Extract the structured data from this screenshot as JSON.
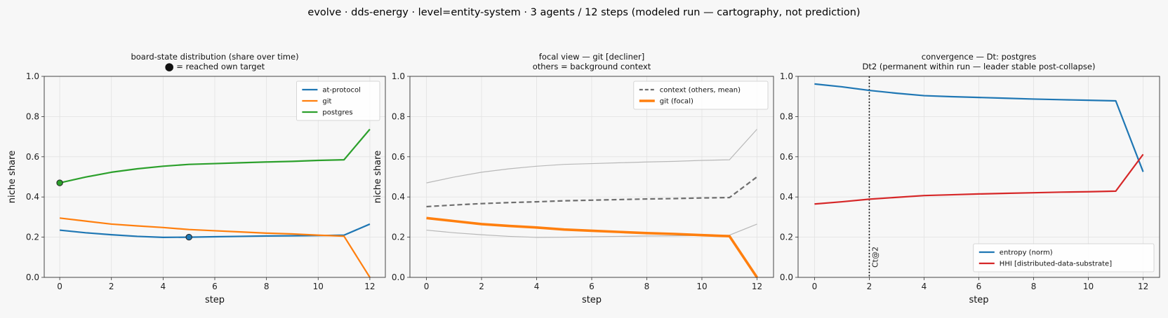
{
  "suptitle": "evolve · dds-energy · level=entity-system · 3 agents / 12 steps   (modeled run — cartography, not prediction)",
  "colors": {
    "blue": "#1f77b4",
    "orange": "#ff7f0e",
    "green": "#2ca02c",
    "red": "#d62728",
    "gray": "#6e6e6e",
    "lightgray": "#b8b8b8"
  },
  "chart_data": [
    {
      "type": "line",
      "title": "board-state distribution (share over time)",
      "subtitle": "⬤ = reached own target",
      "xlabel": "step",
      "ylabel": "niche share",
      "xlim": [
        -0.6,
        12.6
      ],
      "ylim": [
        0,
        1
      ],
      "xticks": [
        0,
        2,
        4,
        6,
        8,
        10,
        12
      ],
      "yticks": [
        0.0,
        0.2,
        0.4,
        0.6,
        0.8,
        1.0
      ],
      "grid": true,
      "legend_position": "top-right",
      "x": [
        0,
        1,
        2,
        3,
        4,
        5,
        6,
        7,
        8,
        9,
        10,
        11,
        12
      ],
      "series": [
        {
          "name": "at-protocol",
          "color": "#1f77b4",
          "values": [
            0.235,
            0.222,
            0.212,
            0.204,
            0.199,
            0.2,
            0.202,
            0.204,
            0.206,
            0.207,
            0.208,
            0.21,
            0.265
          ],
          "target_step": 5
        },
        {
          "name": "git",
          "color": "#ff7f0e",
          "values": [
            0.295,
            0.28,
            0.265,
            0.256,
            0.248,
            0.238,
            0.232,
            0.226,
            0.22,
            0.216,
            0.21,
            0.205,
            0.0
          ]
        },
        {
          "name": "postgres",
          "color": "#2ca02c",
          "values": [
            0.47,
            0.499,
            0.523,
            0.54,
            0.553,
            0.562,
            0.566,
            0.57,
            0.574,
            0.577,
            0.582,
            0.585,
            0.737
          ],
          "target_step": 0
        }
      ]
    },
    {
      "type": "line",
      "title": "focal view — git  [decliner]",
      "subtitle": "others = background context",
      "xlabel": "step",
      "ylabel": "niche share",
      "xlim": [
        -0.6,
        12.6
      ],
      "ylim": [
        0,
        1
      ],
      "xticks": [
        0,
        2,
        4,
        6,
        8,
        10,
        12
      ],
      "yticks": [
        0.0,
        0.2,
        0.4,
        0.6,
        0.8,
        1.0
      ],
      "grid": true,
      "legend_position": "top-right",
      "x": [
        0,
        1,
        2,
        3,
        4,
        5,
        6,
        7,
        8,
        9,
        10,
        11,
        12
      ],
      "background": [
        [
          0.235,
          0.222,
          0.212,
          0.204,
          0.199,
          0.2,
          0.202,
          0.204,
          0.206,
          0.207,
          0.208,
          0.21,
          0.265
        ],
        [
          0.47,
          0.499,
          0.523,
          0.54,
          0.553,
          0.562,
          0.566,
          0.57,
          0.574,
          0.577,
          0.582,
          0.585,
          0.737
        ]
      ],
      "series": [
        {
          "name": "context (others, mean)",
          "color": "#6e6e6e",
          "dashed": true,
          "values": [
            0.352,
            0.36,
            0.367,
            0.372,
            0.376,
            0.381,
            0.384,
            0.387,
            0.39,
            0.392,
            0.395,
            0.397,
            0.5
          ]
        },
        {
          "name": "git (focal)",
          "color": "#ff7f0e",
          "values": [
            0.295,
            0.28,
            0.265,
            0.256,
            0.248,
            0.238,
            0.232,
            0.226,
            0.22,
            0.216,
            0.21,
            0.205,
            0.0
          ]
        }
      ]
    },
    {
      "type": "line",
      "title": "convergence — Dt: postgres",
      "subtitle": "Dt2 (permanent within run — leader stable post-collapse)",
      "xlabel": "step",
      "ylabel": "",
      "xlim": [
        -0.6,
        12.6
      ],
      "ylim": [
        0,
        1
      ],
      "xticks": [
        0,
        2,
        4,
        6,
        8,
        10,
        12
      ],
      "yticks": [
        0.0,
        0.2,
        0.4,
        0.6,
        0.8,
        1.0
      ],
      "grid": true,
      "legend_position": "bottom-right",
      "vline": {
        "x": 2,
        "label": "Ct@2"
      },
      "x": [
        0,
        1,
        2,
        3,
        4,
        5,
        6,
        7,
        8,
        9,
        10,
        11,
        12
      ],
      "series": [
        {
          "name": "entropy (norm)",
          "color": "#1f77b4",
          "values": [
            0.962,
            0.948,
            0.93,
            0.916,
            0.904,
            0.899,
            0.895,
            0.891,
            0.887,
            0.884,
            0.881,
            0.878,
            0.525
          ]
        },
        {
          "name": "HHI [distributed-data-substrate]",
          "color": "#d62728",
          "values": [
            0.365,
            0.376,
            0.389,
            0.398,
            0.407,
            0.411,
            0.415,
            0.418,
            0.421,
            0.424,
            0.426,
            0.429,
            0.612
          ]
        }
      ]
    }
  ]
}
